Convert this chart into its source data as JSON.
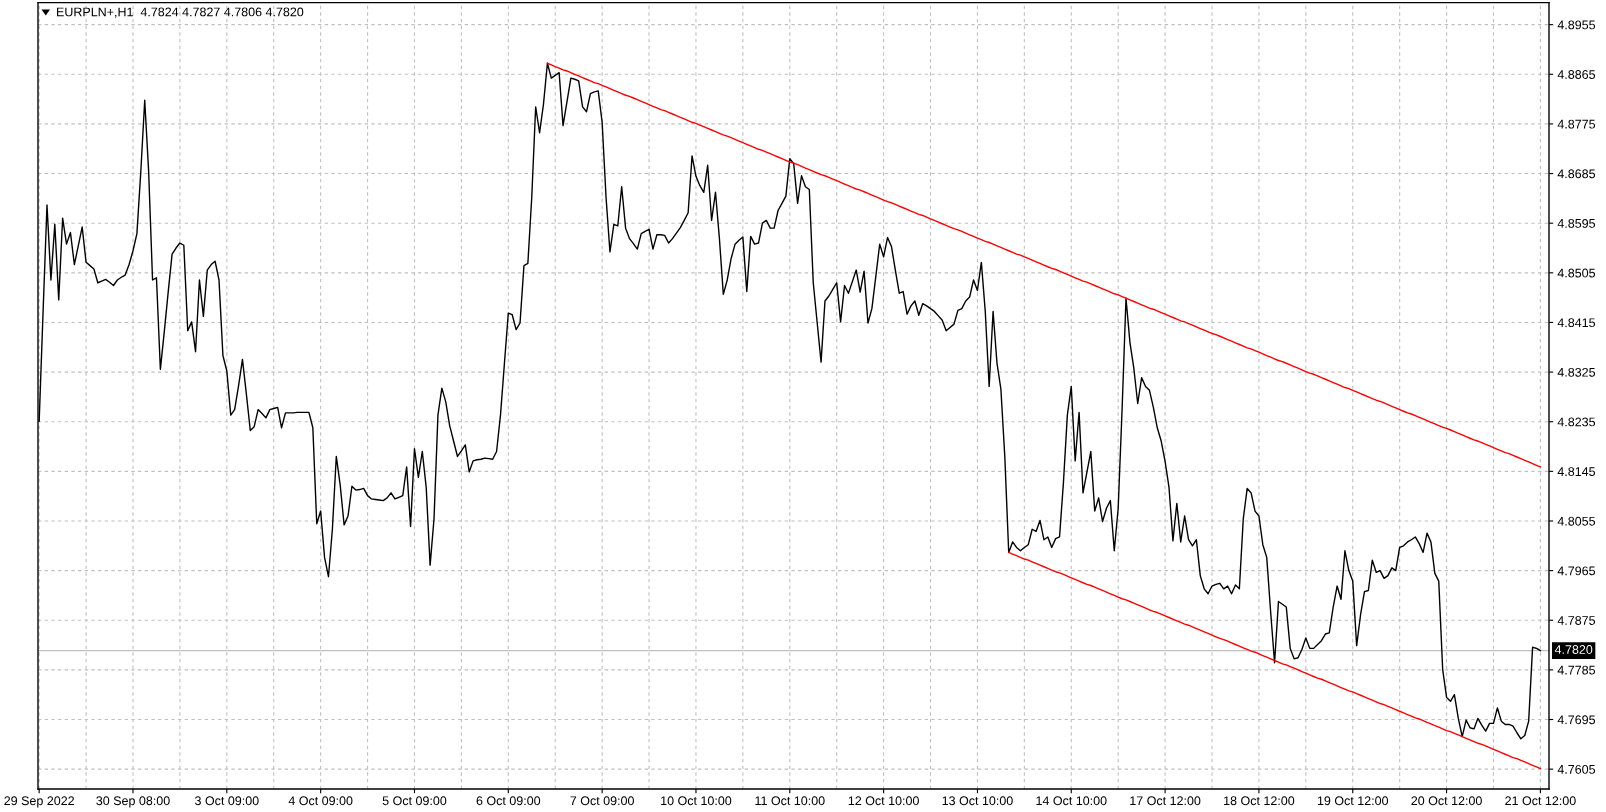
{
  "chart_data": {
    "type": "line",
    "title": "EURPLN+,H1  4.7824 4.7827 4.7806 4.7820",
    "categories": [
      "29 Sep 2022",
      null,
      null,
      null,
      null,
      null,
      null,
      null,
      null,
      null,
      null,
      null,
      null,
      null,
      null,
      null,
      null,
      null,
      null,
      null,
      null,
      null,
      null,
      null,
      "30 Sep 08:00",
      null,
      null,
      null,
      null,
      null,
      null,
      null,
      null,
      null,
      null,
      null,
      null,
      null,
      null,
      null,
      null,
      null,
      null,
      null,
      null,
      null,
      null,
      null,
      "3 Oct 09:00",
      null,
      null,
      null,
      null,
      null,
      null,
      null,
      null,
      null,
      null,
      null,
      null,
      null,
      null,
      null,
      null,
      null,
      null,
      null,
      null,
      null,
      null,
      null,
      "4 Oct 09:00",
      null,
      null,
      null,
      null,
      null,
      null,
      null,
      null,
      null,
      null,
      null,
      null,
      null,
      null,
      null,
      null,
      null,
      null,
      null,
      null,
      null,
      null,
      null,
      "5 Oct 09:00",
      null,
      null,
      null,
      null,
      null,
      null,
      null,
      null,
      null,
      null,
      null,
      null,
      null,
      null,
      null,
      null,
      null,
      null,
      null,
      null,
      null,
      null,
      null,
      "6 Oct 09:00",
      null,
      null,
      null,
      null,
      null,
      null,
      null,
      null,
      null,
      null,
      null,
      null,
      null,
      null,
      null,
      null,
      null,
      null,
      null,
      null,
      null,
      null,
      null,
      "7 Oct 09:00",
      null,
      null,
      null,
      null,
      null,
      null,
      null,
      null,
      null,
      null,
      null,
      null,
      null,
      null,
      null,
      null,
      null,
      null,
      null,
      null,
      null,
      null,
      null,
      "10 Oct 10:00",
      null,
      null,
      null,
      null,
      null,
      null,
      null,
      null,
      null,
      null,
      null,
      null,
      null,
      null,
      null,
      null,
      null,
      null,
      null,
      null,
      null,
      null,
      null,
      "11 Oct 10:00",
      null,
      null,
      null,
      null,
      null,
      null,
      null,
      null,
      null,
      null,
      null,
      null,
      null,
      null,
      null,
      null,
      null,
      null,
      null,
      null,
      null,
      null,
      null,
      "12 Oct 10:00",
      null,
      null,
      null,
      null,
      null,
      null,
      null,
      null,
      null,
      null,
      null,
      null,
      null,
      null,
      null,
      null,
      null,
      null,
      null,
      null,
      null,
      null,
      null,
      "13 Oct 10:00",
      null,
      null,
      null,
      null,
      null,
      null,
      null,
      null,
      null,
      null,
      null,
      null,
      null,
      null,
      null,
      null,
      null,
      null,
      null,
      null,
      null,
      null,
      null,
      "14 Oct 10:00",
      null,
      null,
      null,
      null,
      null,
      null,
      null,
      null,
      null,
      null,
      null,
      null,
      null,
      null,
      null,
      null,
      null,
      null,
      null,
      null,
      null,
      null,
      null,
      "17 Oct 12:00",
      null,
      null,
      null,
      null,
      null,
      null,
      null,
      null,
      null,
      null,
      null,
      null,
      null,
      null,
      null,
      null,
      null,
      null,
      null,
      null,
      null,
      null,
      null,
      "18 Oct 12:00",
      null,
      null,
      null,
      null,
      null,
      null,
      null,
      null,
      null,
      null,
      null,
      null,
      null,
      null,
      null,
      null,
      null,
      null,
      null,
      null,
      null,
      null,
      null,
      "19 Oct 12:00",
      null,
      null,
      null,
      null,
      null,
      null,
      null,
      null,
      null,
      null,
      null,
      null,
      null,
      null,
      null,
      null,
      null,
      null,
      null,
      null,
      null,
      null,
      null,
      "20 Oct 12:00",
      null,
      null,
      null,
      null,
      null,
      null,
      null,
      null,
      null,
      null,
      null,
      null,
      null,
      null,
      null,
      null,
      null,
      null,
      null,
      null,
      null,
      null,
      null,
      "21 Oct 12:00"
    ],
    "series": [
      {
        "color": "#000000",
        "values": [
          4.8236,
          4.8435,
          4.8628,
          4.8492,
          4.8593,
          4.8456,
          4.8604,
          4.8557,
          4.8578,
          4.852,
          4.8554,
          4.8588,
          4.8524,
          4.8518,
          4.8512,
          4.8487,
          4.849,
          4.8493,
          4.8488,
          4.8482,
          4.8492,
          4.8497,
          4.8501,
          4.852,
          4.8545,
          4.8576,
          4.8689,
          4.8818,
          4.8689,
          4.8492,
          4.8496,
          4.833,
          4.8398,
          4.847,
          4.8539,
          4.855,
          4.8559,
          4.8555,
          4.84,
          4.8416,
          4.8362,
          4.8492,
          4.8426,
          4.851,
          4.852,
          4.8526,
          4.8492,
          4.8355,
          4.8327,
          4.8247,
          4.8257,
          4.83,
          4.8348,
          4.8285,
          4.8219,
          4.8226,
          4.8257,
          4.825,
          4.8242,
          4.8257,
          4.8259,
          4.8261,
          4.8224,
          4.8251,
          4.8251,
          4.8251,
          4.8252,
          4.8252,
          4.8252,
          4.8252,
          4.8224,
          4.805,
          4.8073,
          4.7989,
          4.7954,
          4.804,
          4.8172,
          4.812,
          4.8048,
          4.8064,
          4.8118,
          4.8111,
          4.8112,
          4.8114,
          4.8101,
          4.8095,
          4.8094,
          4.8093,
          4.8092,
          4.8097,
          4.8106,
          4.8095,
          4.8098,
          4.8101,
          4.8153,
          4.8045,
          4.8186,
          4.8134,
          4.8181,
          4.8116,
          4.7975,
          4.8059,
          4.8247,
          4.8296,
          4.8271,
          4.8228,
          4.82,
          4.8172,
          4.8182,
          4.8193,
          4.8144,
          4.8164,
          4.8166,
          4.8167,
          4.8169,
          4.8168,
          4.8167,
          4.8181,
          4.8247,
          4.834,
          4.8432,
          4.8429,
          4.8402,
          4.8414,
          4.8518,
          4.8522,
          4.8642,
          4.8806,
          4.8759,
          4.8811,
          4.8885,
          4.8858,
          4.8863,
          4.8868,
          4.8772,
          4.8815,
          4.8858,
          4.8856,
          4.8853,
          4.8806,
          4.8797,
          4.883,
          4.8833,
          4.8835,
          4.8778,
          4.8642,
          4.8543,
          4.8593,
          4.859,
          4.8661,
          4.8586,
          4.8567,
          4.8558,
          4.8548,
          4.8576,
          4.858,
          4.8584,
          4.8548,
          4.8574,
          4.8574,
          4.8573,
          4.8559,
          4.8567,
          4.8577,
          4.8587,
          4.86,
          4.8614,
          4.8717,
          4.868,
          4.8663,
          4.8651,
          4.87,
          4.86,
          4.8651,
          4.8567,
          4.8466,
          4.8492,
          4.8531,
          4.8557,
          4.8564,
          4.857,
          4.8471,
          4.8571,
          4.8557,
          4.8559,
          4.8595,
          4.86,
          4.8586,
          4.8586,
          4.8618,
          4.8631,
          4.8644,
          4.8712,
          4.8703,
          4.8631,
          4.8681,
          4.8661,
          4.8656,
          4.8487,
          4.8415,
          4.8343,
          4.8454,
          4.8463,
          4.8475,
          4.8487,
          4.8416,
          4.8482,
          4.8468,
          4.8489,
          4.851,
          4.847,
          4.8508,
          4.8414,
          4.844,
          4.8498,
          4.8557,
          4.8534,
          4.8569,
          4.8553,
          4.851,
          4.8468,
          4.8471,
          4.843,
          4.8445,
          4.8454,
          4.8428,
          4.8449,
          4.8445,
          4.844,
          4.8435,
          4.8427,
          4.8419,
          4.84,
          4.8406,
          4.8412,
          4.8437,
          4.844,
          4.8454,
          4.8461,
          4.8492,
          4.8473,
          4.8524,
          4.8435,
          4.8299,
          4.8435,
          4.8341,
          4.8294,
          4.8172,
          4.7998,
          4.8017,
          4.8007,
          4.8001,
          4.8007,
          4.8012,
          4.804,
          4.8036,
          4.8056,
          4.8021,
          4.8026,
          4.8007,
          4.8023,
          4.8026,
          4.8125,
          4.8247,
          4.8299,
          4.8164,
          4.8252,
          4.8106,
          4.8143,
          4.8181,
          4.8073,
          4.8097,
          4.8054,
          4.8078,
          4.8092,
          4.8001,
          4.8078,
          4.8257,
          4.8459,
          4.8379,
          4.8332,
          4.8268,
          4.8315,
          4.8299,
          4.8292,
          4.8261,
          4.8224,
          4.82,
          4.8163,
          4.8116,
          4.8019,
          4.8087,
          4.8017,
          4.8064,
          4.8021,
          4.801,
          4.8021,
          4.7956,
          4.7932,
          4.7923,
          4.7937,
          4.794,
          4.7942,
          4.7932,
          4.7937,
          4.7923,
          4.7939,
          4.7932,
          4.8059,
          4.8114,
          4.8106,
          4.8073,
          4.8064,
          4.8012,
          4.7989,
          4.789,
          4.7798,
          4.7909,
          4.7904,
          4.7899,
          4.7824,
          4.7805,
          4.7807,
          4.7822,
          4.7843,
          4.7824,
          4.7824,
          4.7831,
          4.7838,
          4.785,
          4.7852,
          4.7899,
          4.7937,
          4.7913,
          4.8001,
          4.7965,
          4.7946,
          4.7829,
          4.7885,
          4.7927,
          4.7929,
          4.7984,
          4.7962,
          4.7965,
          4.7951,
          4.7956,
          4.797,
          4.7965,
          4.8007,
          4.801,
          4.8017,
          4.8021,
          4.8026,
          4.8014,
          4.7998,
          4.8033,
          4.8017,
          4.796,
          4.7946,
          4.7786,
          4.7735,
          4.7728,
          4.774,
          4.7697,
          4.7664,
          4.7694,
          4.768,
          4.7678,
          4.7697,
          4.7685,
          4.7674,
          4.7688,
          4.7688,
          4.7716,
          4.7692,
          4.7686,
          4.7686,
          4.7683,
          4.7671,
          4.766,
          4.7666,
          4.7692,
          4.7826,
          4.7824,
          4.782
        ]
      },
      {
        "type": "line",
        "color": "#ff0000",
        "values": [
          null,
          null,
          null,
          null,
          null,
          null,
          null,
          null,
          null,
          null,
          null,
          null,
          null,
          null,
          null,
          null,
          null,
          null,
          null,
          null,
          null,
          null,
          null,
          null,
          null,
          null,
          null,
          null,
          null,
          null,
          null,
          null,
          null,
          null,
          null,
          null,
          null,
          null,
          null,
          null,
          null,
          null,
          null,
          null,
          null,
          null,
          null,
          null,
          null,
          null,
          null,
          null,
          null,
          null,
          null,
          null,
          null,
          null,
          null,
          null,
          null,
          null,
          null,
          null,
          null,
          null,
          null,
          null,
          null,
          null,
          null,
          null,
          null,
          null,
          null,
          null,
          null,
          null,
          null,
          null,
          null,
          null,
          null,
          null,
          null,
          null,
          null,
          null,
          null,
          null,
          null,
          null,
          null,
          null,
          null,
          null,
          null,
          null,
          null,
          null,
          null,
          null,
          null,
          null,
          null,
          null,
          null,
          null,
          null,
          null,
          null,
          null,
          null,
          null,
          null,
          null,
          null,
          null,
          null,
          null,
          null,
          null,
          null,
          null,
          null,
          null,
          null,
          null,
          null,
          null,
          4.8885,
          4.8882,
          4.8879,
          4.8876,
          4.8873,
          4.8871,
          4.8868,
          4.8865,
          4.8862,
          4.8859,
          4.8856,
          4.8853,
          4.885,
          4.8848,
          4.8845,
          4.8842,
          4.8839,
          4.8836,
          4.8833,
          4.883,
          4.8827,
          4.8825,
          4.8822,
          4.8819,
          4.8816,
          4.8813,
          4.881,
          4.8807,
          4.8804,
          4.8801,
          4.8799,
          4.8796,
          4.8793,
          4.879,
          4.8787,
          4.8784,
          4.8781,
          4.8778,
          4.8776,
          4.8773,
          4.877,
          4.8767,
          4.8764,
          4.8761,
          4.8758,
          4.8755,
          4.8753,
          4.875,
          4.8747,
          4.8744,
          4.8741,
          4.8738,
          4.8735,
          4.8732,
          4.8729,
          4.8727,
          4.8724,
          4.8721,
          4.8718,
          4.8715,
          4.8712,
          4.8709,
          4.8706,
          4.8704,
          4.8701,
          4.8698,
          4.8695,
          4.8692,
          4.8689,
          4.8686,
          4.8683,
          4.8681,
          4.8678,
          4.8675,
          4.8672,
          4.8669,
          4.8666,
          4.8663,
          4.866,
          4.8657,
          4.8655,
          4.8652,
          4.8649,
          4.8646,
          4.8643,
          4.864,
          4.8637,
          4.8634,
          4.8632,
          4.8629,
          4.8626,
          4.8623,
          4.862,
          4.8617,
          4.8614,
          4.8611,
          4.8609,
          4.8606,
          4.8603,
          4.86,
          4.8597,
          4.8594,
          4.8591,
          4.8588,
          4.8585,
          4.8583,
          4.858,
          4.8577,
          4.8574,
          4.8571,
          4.8568,
          4.8565,
          4.8562,
          4.856,
          4.8557,
          4.8554,
          4.8551,
          4.8548,
          4.8545,
          4.8542,
          4.8539,
          4.8537,
          4.8534,
          4.8531,
          4.8528,
          4.8525,
          4.8522,
          4.8519,
          4.8516,
          4.8513,
          4.8511,
          4.8508,
          4.8505,
          4.8502,
          4.8499,
          4.8496,
          4.8493,
          4.849,
          4.8488,
          4.8485,
          4.8482,
          4.8479,
          4.8476,
          4.8473,
          4.847,
          4.8467,
          4.8465,
          4.8462,
          4.8459,
          4.8456,
          4.8453,
          4.845,
          4.8447,
          4.8444,
          4.8441,
          4.8439,
          4.8436,
          4.8433,
          4.843,
          4.8427,
          4.8424,
          4.8421,
          4.8418,
          4.8416,
          4.8413,
          4.841,
          4.8407,
          4.8404,
          4.8401,
          4.8398,
          4.8395,
          4.8393,
          4.839,
          4.8387,
          4.8384,
          4.8381,
          4.8378,
          4.8375,
          4.8372,
          4.8369,
          4.8367,
          4.8364,
          4.8361,
          4.8358,
          4.8355,
          4.8352,
          4.8349,
          4.8346,
          4.8344,
          4.8341,
          4.8338,
          4.8335,
          4.8332,
          4.8329,
          4.8326,
          4.8323,
          4.8321,
          4.8318,
          4.8315,
          4.8312,
          4.8309,
          4.8306,
          4.8303,
          4.83,
          4.8297,
          4.8295,
          4.8292,
          4.8289,
          4.8286,
          4.8283,
          4.828,
          4.8277,
          4.8274,
          4.8272,
          4.8269,
          4.8266,
          4.8263,
          4.826,
          4.8257,
          4.8254,
          4.8251,
          4.8249,
          4.8246,
          4.8243,
          4.824,
          4.8237,
          4.8234,
          4.8231,
          4.8228,
          4.8225,
          4.8223,
          4.822,
          4.8217,
          4.8214,
          4.8211,
          4.8208,
          4.8205,
          4.8202,
          4.82,
          4.8197,
          4.8194,
          4.8191,
          4.8188,
          4.8185,
          4.8182,
          4.8179,
          4.8177,
          4.8174,
          4.8171,
          4.8168,
          4.8165,
          4.8162,
          4.8159,
          4.8156,
          4.8153
        ]
      },
      {
        "type": "line",
        "color": "#ff0000",
        "values": [
          null,
          null,
          null,
          null,
          null,
          null,
          null,
          null,
          null,
          null,
          null,
          null,
          null,
          null,
          null,
          null,
          null,
          null,
          null,
          null,
          null,
          null,
          null,
          null,
          null,
          null,
          null,
          null,
          null,
          null,
          null,
          null,
          null,
          null,
          null,
          null,
          null,
          null,
          null,
          null,
          null,
          null,
          null,
          null,
          null,
          null,
          null,
          null,
          null,
          null,
          null,
          null,
          null,
          null,
          null,
          null,
          null,
          null,
          null,
          null,
          null,
          null,
          null,
          null,
          null,
          null,
          null,
          null,
          null,
          null,
          null,
          null,
          null,
          null,
          null,
          null,
          null,
          null,
          null,
          null,
          null,
          null,
          null,
          null,
          null,
          null,
          null,
          null,
          null,
          null,
          null,
          null,
          null,
          null,
          null,
          null,
          null,
          null,
          null,
          null,
          null,
          null,
          null,
          null,
          null,
          null,
          null,
          null,
          null,
          null,
          null,
          null,
          null,
          null,
          null,
          null,
          null,
          null,
          null,
          null,
          null,
          null,
          null,
          null,
          null,
          null,
          null,
          null,
          null,
          null,
          null,
          null,
          null,
          null,
          null,
          null,
          null,
          null,
          null,
          null,
          null,
          null,
          null,
          null,
          null,
          null,
          null,
          null,
          null,
          null,
          null,
          null,
          null,
          null,
          null,
          null,
          null,
          null,
          null,
          null,
          null,
          null,
          null,
          null,
          null,
          null,
          null,
          null,
          null,
          null,
          null,
          null,
          null,
          null,
          null,
          null,
          null,
          null,
          null,
          null,
          null,
          null,
          null,
          null,
          null,
          null,
          null,
          null,
          null,
          null,
          null,
          null,
          null,
          null,
          null,
          null,
          null,
          null,
          null,
          null,
          null,
          null,
          null,
          null,
          null,
          null,
          null,
          null,
          null,
          null,
          null,
          null,
          null,
          null,
          null,
          null,
          null,
          null,
          null,
          null,
          null,
          null,
          null,
          null,
          null,
          null,
          null,
          null,
          null,
          null,
          null,
          null,
          null,
          null,
          null,
          null,
          null,
          null,
          null,
          null,
          null,
          null,
          null,
          null,
          null,
          null,
          null,
          null,
          4.7998,
          4.7995,
          4.7992,
          4.7989,
          4.7986,
          4.7984,
          4.7981,
          4.7978,
          4.7975,
          4.7972,
          4.7969,
          4.7966,
          4.7963,
          4.7961,
          4.7958,
          4.7955,
          4.7952,
          4.7949,
          4.7946,
          4.7943,
          4.794,
          4.7938,
          4.7935,
          4.7932,
          4.7929,
          4.7926,
          4.7923,
          4.792,
          4.7917,
          4.7914,
          4.7912,
          4.7909,
          4.7906,
          4.7903,
          4.79,
          4.7897,
          4.7894,
          4.7891,
          4.7889,
          4.7886,
          4.7883,
          4.788,
          4.7877,
          4.7874,
          4.7871,
          4.7868,
          4.7866,
          4.7863,
          4.786,
          4.7857,
          4.7854,
          4.7851,
          4.7848,
          4.7845,
          4.7842,
          4.784,
          4.7837,
          4.7834,
          4.7831,
          4.7828,
          4.7825,
          4.7822,
          4.7819,
          4.7817,
          4.7814,
          4.7811,
          4.7808,
          4.7805,
          4.7802,
          4.7799,
          4.7796,
          4.7794,
          4.7791,
          4.7788,
          4.7785,
          4.7782,
          4.7779,
          4.7776,
          4.7773,
          4.777,
          4.7768,
          4.7765,
          4.7762,
          4.7759,
          4.7756,
          4.7753,
          4.775,
          4.7747,
          4.7745,
          4.7742,
          4.7739,
          4.7736,
          4.7733,
          4.773,
          4.7727,
          4.7724,
          4.7722,
          4.7719,
          4.7716,
          4.7713,
          4.771,
          4.7707,
          4.7704,
          4.7701,
          4.7698,
          4.7696,
          4.7693,
          4.769,
          4.7687,
          4.7684,
          4.7681,
          4.7678,
          4.7675,
          4.7673,
          4.767,
          4.7667,
          4.7664,
          4.7661,
          4.7658,
          4.7655,
          4.7652,
          4.765,
          4.7647,
          4.7644,
          4.7641,
          4.7638,
          4.7635,
          4.7632,
          4.7629,
          4.7626,
          4.7624,
          4.7621,
          4.7618,
          4.7615,
          4.7612,
          4.7609,
          4.7606
        ]
      }
    ],
    "ylim": [
      4.7569,
      4.8995
    ],
    "yticks": [
      4.7605,
      4.7695,
      4.7785,
      4.7875,
      4.7965,
      4.8055,
      4.8145,
      4.8235,
      4.8325,
      4.8415,
      4.8505,
      4.8595,
      4.8685,
      4.8775,
      4.8865,
      4.8955
    ],
    "ref_lines": [
      {
        "axis": "y",
        "value": 4.782,
        "label": "4.7820",
        "color": "#c0c0c0"
      }
    ],
    "grid": true
  }
}
